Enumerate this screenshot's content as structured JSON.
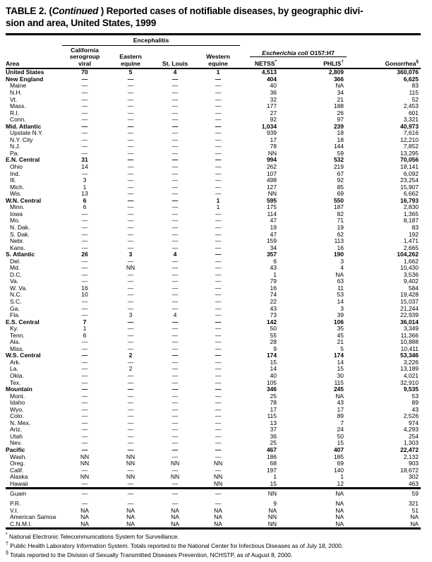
{
  "title": {
    "part1": "TABLE 2. (",
    "italic": "Continued",
    "part2": " ) Reported cases of notifiable diseases, by geographic divi-",
    "part3": "sion and area, United States, 1999"
  },
  "header": {
    "area": "Area",
    "encephalitis_group": "Encephalitis",
    "ecoli_group_italic": "Escherichia coli",
    "ecoli_group_rest": " O157:H7",
    "col_california": "California\nserogroup\nviral",
    "col_eastern": "Eastern\nequine",
    "col_stlouis": "St. Louis",
    "col_western": "Western\nequine",
    "col_netss": {
      "label": "NETSS",
      "sup": "*"
    },
    "col_phlis": {
      "label": "PHLIS",
      "sup": "†"
    },
    "col_gonorrhea": {
      "label": "Gonorrhea",
      "sup": "§"
    }
  },
  "table": {
    "rows": [
      {
        "area": "United States",
        "bold": true,
        "indent": false,
        "section": "main",
        "values": [
          "70",
          "5",
          "4",
          "1",
          "4,513",
          "2,809",
          "360,076"
        ]
      },
      {
        "area": "New England",
        "bold": true,
        "indent": false,
        "section": "main",
        "values": [
          "—",
          "—",
          "—",
          "—",
          "404",
          "366",
          "6,625"
        ]
      },
      {
        "area": "Maine",
        "bold": false,
        "indent": true,
        "section": "main",
        "values": [
          "—",
          "—",
          "—",
          "—",
          "40",
          "NA",
          "83"
        ]
      },
      {
        "area": "N.H.",
        "bold": false,
        "indent": true,
        "section": "main",
        "values": [
          "—",
          "—",
          "—",
          "—",
          "36",
          "34",
          "115"
        ]
      },
      {
        "area": "Vt.",
        "bold": false,
        "indent": true,
        "section": "main",
        "values": [
          "—",
          "—",
          "—",
          "—",
          "32",
          "21",
          "52"
        ]
      },
      {
        "area": "Mass.",
        "bold": false,
        "indent": true,
        "section": "main",
        "values": [
          "—",
          "—",
          "—",
          "—",
          "177",
          "188",
          "2,453"
        ]
      },
      {
        "area": "R.I.",
        "bold": false,
        "indent": true,
        "section": "main",
        "values": [
          "—",
          "—",
          "—",
          "—",
          "27",
          "26",
          "601"
        ]
      },
      {
        "area": "Conn.",
        "bold": false,
        "indent": true,
        "section": "main",
        "values": [
          "—",
          "—",
          "—",
          "—",
          "92",
          "97",
          "3,321"
        ]
      },
      {
        "area": "Mid. Atlantic",
        "bold": true,
        "indent": false,
        "section": "main",
        "values": [
          "—",
          "—",
          "—",
          "—",
          "1,034",
          "239",
          "40,973"
        ]
      },
      {
        "area": "Upstate N.Y.",
        "bold": false,
        "indent": true,
        "section": "main",
        "values": [
          "—",
          "—",
          "—",
          "—",
          "939",
          "18",
          "7,616"
        ]
      },
      {
        "area": "N.Y. City",
        "bold": false,
        "indent": true,
        "section": "main",
        "values": [
          "—",
          "—",
          "—",
          "—",
          "17",
          "18",
          "12,210"
        ]
      },
      {
        "area": "N.J.",
        "bold": false,
        "indent": true,
        "section": "main",
        "values": [
          "—",
          "—",
          "—",
          "—",
          "78",
          "144",
          "7,852"
        ]
      },
      {
        "area": "Pa.",
        "bold": false,
        "indent": true,
        "section": "main",
        "values": [
          "—",
          "—",
          "—",
          "—",
          "NN",
          "59",
          "13,295"
        ]
      },
      {
        "area": "E.N. Central",
        "bold": true,
        "indent": false,
        "section": "main",
        "values": [
          "31",
          "—",
          "—",
          "—",
          "994",
          "532",
          "70,056"
        ]
      },
      {
        "area": "Ohio",
        "bold": false,
        "indent": true,
        "section": "main",
        "values": [
          "14",
          "—",
          "—",
          "—",
          "262",
          "219",
          "18,141"
        ]
      },
      {
        "area": "Ind.",
        "bold": false,
        "indent": true,
        "section": "main",
        "values": [
          "—",
          "—",
          "—",
          "—",
          "107",
          "67",
          "6,092"
        ]
      },
      {
        "area": "Ill.",
        "bold": false,
        "indent": true,
        "section": "main",
        "values": [
          "3",
          "—",
          "—",
          "—",
          "498",
          "92",
          "23,254"
        ]
      },
      {
        "area": "Mich.",
        "bold": false,
        "indent": true,
        "section": "main",
        "values": [
          "1",
          "—",
          "—",
          "—",
          "127",
          "85",
          "15,907"
        ]
      },
      {
        "area": "Wis.",
        "bold": false,
        "indent": true,
        "section": "main",
        "values": [
          "13",
          "—",
          "—",
          "—",
          "NN",
          "69",
          "6,662"
        ]
      },
      {
        "area": "W.N. Central",
        "bold": true,
        "indent": false,
        "section": "main",
        "values": [
          "6",
          "—",
          "—",
          "1",
          "595",
          "550",
          "16,793"
        ]
      },
      {
        "area": "Minn.",
        "bold": false,
        "indent": true,
        "section": "main",
        "values": [
          "6",
          "—",
          "—",
          "1",
          "175",
          "187",
          "2,830"
        ]
      },
      {
        "area": "Iowa",
        "bold": false,
        "indent": true,
        "section": "main",
        "values": [
          "—",
          "—",
          "—",
          "—",
          "114",
          "82",
          "1,365"
        ]
      },
      {
        "area": "Mo.",
        "bold": false,
        "indent": true,
        "section": "main",
        "values": [
          "—",
          "—",
          "—",
          "—",
          "47",
          "71",
          "8,187"
        ]
      },
      {
        "area": "N. Dak.",
        "bold": false,
        "indent": true,
        "section": "main",
        "values": [
          "—",
          "—",
          "—",
          "—",
          "19",
          "19",
          "83"
        ]
      },
      {
        "area": "S. Dak.",
        "bold": false,
        "indent": true,
        "section": "main",
        "values": [
          "—",
          "—",
          "—",
          "—",
          "47",
          "62",
          "192"
        ]
      },
      {
        "area": "Nebr.",
        "bold": false,
        "indent": true,
        "section": "main",
        "values": [
          "—",
          "—",
          "—",
          "—",
          "159",
          "113",
          "1,471"
        ]
      },
      {
        "area": "Kans.",
        "bold": false,
        "indent": true,
        "section": "main",
        "values": [
          "—",
          "—",
          "—",
          "—",
          "34",
          "16",
          "2,665"
        ]
      },
      {
        "area": "S. Atlantic",
        "bold": true,
        "indent": false,
        "section": "main",
        "values": [
          "26",
          "3",
          "4",
          "—",
          "357",
          "190",
          "104,262"
        ]
      },
      {
        "area": "Del.",
        "bold": false,
        "indent": true,
        "section": "main",
        "values": [
          "—",
          "—",
          "—",
          "—",
          "6",
          "3",
          "1,662"
        ]
      },
      {
        "area": "Md.",
        "bold": false,
        "indent": true,
        "section": "main",
        "values": [
          "—",
          "NN",
          "—",
          "—",
          "43",
          "4",
          "10,430"
        ]
      },
      {
        "area": "D.C.",
        "bold": false,
        "indent": true,
        "section": "main",
        "values": [
          "—",
          "—",
          "—",
          "—",
          "1",
          "NA",
          "3,536"
        ]
      },
      {
        "area": "Va.",
        "bold": false,
        "indent": true,
        "section": "main",
        "values": [
          "—",
          "—",
          "—",
          "—",
          "79",
          "63",
          "9,402"
        ]
      },
      {
        "area": "W. Va.",
        "bold": false,
        "indent": true,
        "section": "main",
        "values": [
          "16",
          "—",
          "—",
          "—",
          "16",
          "11",
          "584"
        ]
      },
      {
        "area": "N.C.",
        "bold": false,
        "indent": true,
        "section": "main",
        "values": [
          "10",
          "—",
          "—",
          "—",
          "74",
          "53",
          "19,428"
        ]
      },
      {
        "area": "S.C.",
        "bold": false,
        "indent": true,
        "section": "main",
        "values": [
          "—",
          "—",
          "—",
          "—",
          "22",
          "14",
          "15,037"
        ]
      },
      {
        "area": "Ga.",
        "bold": false,
        "indent": true,
        "section": "main",
        "values": [
          "—",
          "—",
          "—",
          "—",
          "43",
          "3",
          "21,244"
        ]
      },
      {
        "area": "Fla.",
        "bold": false,
        "indent": true,
        "section": "main",
        "values": [
          "—",
          "3",
          "4",
          "—",
          "73",
          "39",
          "22,939"
        ]
      },
      {
        "area": "E.S. Central",
        "bold": true,
        "indent": false,
        "section": "main",
        "values": [
          "7",
          "—",
          "—",
          "—",
          "142",
          "106",
          "36,014"
        ]
      },
      {
        "area": "Ky.",
        "bold": false,
        "indent": true,
        "section": "main",
        "values": [
          "1",
          "—",
          "—",
          "—",
          "50",
          "35",
          "3,349"
        ]
      },
      {
        "area": "Tenn.",
        "bold": false,
        "indent": true,
        "section": "main",
        "values": [
          "6",
          "—",
          "—",
          "—",
          "55",
          "45",
          "11,366"
        ]
      },
      {
        "area": "Ala.",
        "bold": false,
        "indent": true,
        "section": "main",
        "values": [
          "—",
          "—",
          "—",
          "—",
          "28",
          "21",
          "10,888"
        ]
      },
      {
        "area": "Miss.",
        "bold": false,
        "indent": true,
        "section": "main",
        "values": [
          "—",
          "—",
          "—",
          "—",
          "9",
          "5",
          "10,411"
        ]
      },
      {
        "area": "W.S. Central",
        "bold": true,
        "indent": false,
        "section": "main",
        "values": [
          "—",
          "2",
          "—",
          "—",
          "174",
          "174",
          "53,346"
        ]
      },
      {
        "area": "Ark.",
        "bold": false,
        "indent": true,
        "section": "main",
        "values": [
          "—",
          "—",
          "—",
          "—",
          "15",
          "14",
          "3,226"
        ]
      },
      {
        "area": "La.",
        "bold": false,
        "indent": true,
        "section": "main",
        "values": [
          "—",
          "2",
          "—",
          "—",
          "14",
          "15",
          "13,189"
        ]
      },
      {
        "area": "Okla.",
        "bold": false,
        "indent": true,
        "section": "main",
        "values": [
          "—",
          "—",
          "—",
          "—",
          "40",
          "30",
          "4,021"
        ]
      },
      {
        "area": "Tex.",
        "bold": false,
        "indent": true,
        "section": "main",
        "values": [
          "—",
          "—",
          "—",
          "—",
          "105",
          "115",
          "32,910"
        ]
      },
      {
        "area": "Mountain",
        "bold": true,
        "indent": false,
        "section": "main",
        "values": [
          "—",
          "—",
          "—",
          "—",
          "346",
          "245",
          "9,535"
        ]
      },
      {
        "area": "Mont.",
        "bold": false,
        "indent": true,
        "section": "main",
        "values": [
          "—",
          "—",
          "—",
          "—",
          "25",
          "NA",
          "53"
        ]
      },
      {
        "area": "Idaho",
        "bold": false,
        "indent": true,
        "section": "main",
        "values": [
          "—",
          "—",
          "—",
          "—",
          "78",
          "43",
          "89"
        ]
      },
      {
        "area": "Wyo.",
        "bold": false,
        "indent": true,
        "section": "main",
        "values": [
          "—",
          "—",
          "—",
          "—",
          "17",
          "17",
          "43"
        ]
      },
      {
        "area": "Colo.",
        "bold": false,
        "indent": true,
        "section": "main",
        "values": [
          "—",
          "—",
          "—",
          "—",
          "115",
          "89",
          "2,526"
        ]
      },
      {
        "area": "N. Mex.",
        "bold": false,
        "indent": true,
        "section": "main",
        "values": [
          "—",
          "—",
          "—",
          "—",
          "13",
          "7",
          "974"
        ]
      },
      {
        "area": "Ariz.",
        "bold": false,
        "indent": true,
        "section": "main",
        "values": [
          "—",
          "—",
          "—",
          "—",
          "37",
          "24",
          "4,293"
        ]
      },
      {
        "area": "Utah",
        "bold": false,
        "indent": true,
        "section": "main",
        "values": [
          "—",
          "—",
          "—",
          "—",
          "36",
          "50",
          "254"
        ]
      },
      {
        "area": "Nev.",
        "bold": false,
        "indent": true,
        "section": "main",
        "values": [
          "—",
          "—",
          "—",
          "—",
          "25",
          "15",
          "1,303"
        ]
      },
      {
        "area": "Pacific",
        "bold": true,
        "indent": false,
        "section": "main",
        "values": [
          "—",
          "—",
          "—",
          "—",
          "467",
          "407",
          "22,472"
        ]
      },
      {
        "area": "Wash.",
        "bold": false,
        "indent": true,
        "section": "main",
        "values": [
          "NN",
          "NN",
          "—",
          "—",
          "186",
          "185",
          "2,132"
        ]
      },
      {
        "area": "Oreg.",
        "bold": false,
        "indent": true,
        "section": "main",
        "values": [
          "NN",
          "NN",
          "NN",
          "NN",
          "68",
          "69",
          "903"
        ]
      },
      {
        "area": "Calif.",
        "bold": false,
        "indent": true,
        "section": "main",
        "values": [
          "—",
          "—",
          "—",
          "—",
          "197",
          "140",
          "18,672"
        ]
      },
      {
        "area": "Alaska",
        "bold": false,
        "indent": true,
        "section": "main",
        "values": [
          "NN",
          "NN",
          "NN",
          "NN",
          "1",
          "1",
          "302"
        ]
      },
      {
        "area": "Hawaii",
        "bold": false,
        "indent": true,
        "section": "main",
        "values": [
          "—",
          "—",
          "—",
          "NN",
          "15",
          "12",
          "463"
        ]
      },
      {
        "area": "Guam",
        "bold": false,
        "indent": true,
        "section": "territories",
        "values": [
          "—",
          "—",
          "—",
          "—",
          "NN",
          "NA",
          "59"
        ]
      },
      {
        "area": "P.R.",
        "bold": false,
        "indent": true,
        "section": "territories",
        "gap": true,
        "values": [
          "—",
          "—",
          "—",
          "—",
          "9",
          "NA",
          "321"
        ]
      },
      {
        "area": "V.I.",
        "bold": false,
        "indent": true,
        "section": "territories",
        "values": [
          "NA",
          "NA",
          "NA",
          "NA",
          "NA",
          "NA",
          "51"
        ]
      },
      {
        "area": "American Samoa",
        "bold": false,
        "indent": true,
        "section": "territories",
        "values": [
          "NA",
          "NA",
          "NA",
          "NA",
          "NN",
          "NA",
          "NA"
        ]
      },
      {
        "area": "C.N.M.I.",
        "bold": false,
        "indent": true,
        "section": "territories",
        "values": [
          "NA",
          "NA",
          "NA",
          "NA",
          "NN",
          "NA",
          "NA"
        ]
      }
    ]
  },
  "footnotes": [
    {
      "sym": "*",
      "text": "National Electronic Telecommunications System for Surveillance."
    },
    {
      "sym": "†",
      "text": "Public Health Laboratory Information System. Totals reported to the National Center for Infectious Diseases as of July 18, 2000."
    },
    {
      "sym": "§",
      "text": "Totals reported to the Division of Sexually Transmitted Diseases Prevention, NCHSTP, as of August 8, 2000."
    }
  ]
}
